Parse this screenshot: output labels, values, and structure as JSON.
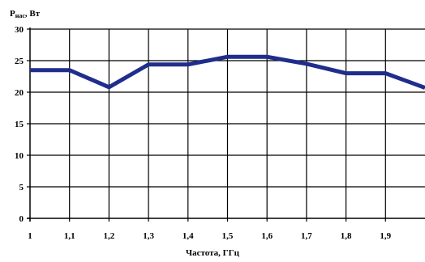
{
  "chart_data": {
    "type": "line",
    "ylabel_main": "P",
    "ylabel_sub": "нас",
    "ylabel_unit": ", Вт",
    "xlabel": "Частота, ГГц",
    "ylim": [
      0,
      30
    ],
    "xlim": [
      1,
      2
    ],
    "y_ticks": [
      0,
      5,
      10,
      15,
      20,
      25,
      30
    ],
    "x_ticks": [
      1,
      1.1,
      1.2,
      1.3,
      1.4,
      1.5,
      1.6,
      1.7,
      1.8,
      1.9
    ],
    "x_tick_labels": [
      "1",
      "1,1",
      "1,2",
      "1,3",
      "1,4",
      "1,5",
      "1,6",
      "1,7",
      "1,8",
      "1,9"
    ],
    "grid": true,
    "series": [
      {
        "color": "#1f2e8c",
        "x": [
          1.0,
          1.1,
          1.2,
          1.3,
          1.4,
          1.5,
          1.6,
          1.7,
          1.8,
          1.9,
          2.0
        ],
        "values": [
          23.5,
          23.5,
          20.8,
          24.4,
          24.4,
          25.6,
          25.6,
          24.5,
          23.0,
          23.0,
          20.7
        ]
      }
    ]
  }
}
